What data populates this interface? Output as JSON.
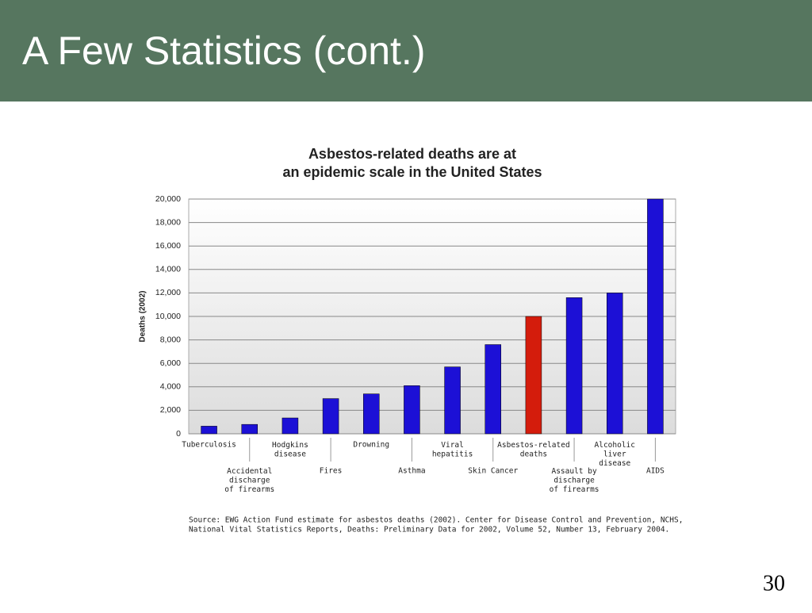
{
  "slide": {
    "title": "A Few Statistics (cont.)",
    "page_number": "30"
  },
  "chart_data": {
    "type": "bar",
    "title": [
      "Asbestos-related deaths are at",
      "an epidemic scale in the United States"
    ],
    "y_label": "Deaths (2002)",
    "categories": [
      "Tuberculosis",
      "Accidental\ndischarge\nof firearms",
      "Hodgkins\ndisease",
      "Fires",
      "Drowning",
      "Asthma",
      "Viral\nhepatitis",
      "Skin Cancer",
      "Asbestos-related\ndeaths",
      "Assault by\ndischarge\nof firearms",
      "Alcoholic\nliver\ndisease",
      "AIDS"
    ],
    "values": [
      650,
      800,
      1350,
      3000,
      3400,
      4100,
      5700,
      7600,
      10000,
      11600,
      12000,
      20000
    ],
    "colors": [
      "#1c10d6",
      "#1c10d6",
      "#1c10d6",
      "#1c10d6",
      "#1c10d6",
      "#1c10d6",
      "#1c10d6",
      "#1c10d6",
      "#d41c0c",
      "#1c10d6",
      "#1c10d6",
      "#1c10d6"
    ],
    "ylim": [
      0,
      20000
    ],
    "yticks": [
      0,
      {
        "value": 2000,
        "label": "2,000"
      },
      {
        "value": 4000,
        "label": "4,000"
      },
      {
        "value": 6000,
        "label": "6,000"
      },
      {
        "value": 8000,
        "label": "8,000"
      },
      {
        "value": 10000,
        "label": "10,000"
      },
      {
        "value": 12000,
        "label": "12,000"
      },
      {
        "value": 14000,
        "label": "14,000"
      },
      {
        "value": 16000,
        "label": "16,000"
      },
      {
        "value": 18000,
        "label": "18,000"
      },
      {
        "value": 20000,
        "label": "20,000"
      }
    ],
    "grid": true,
    "source": [
      "Source:  EWG Action Fund estimate for asbestos deaths (2002).  Center for Disease Control and Prevention, NCHS,",
      "National Vital Statistics Reports, Deaths: Preliminary Data for 2002, Volume 52, Number 13, February 2004."
    ]
  }
}
